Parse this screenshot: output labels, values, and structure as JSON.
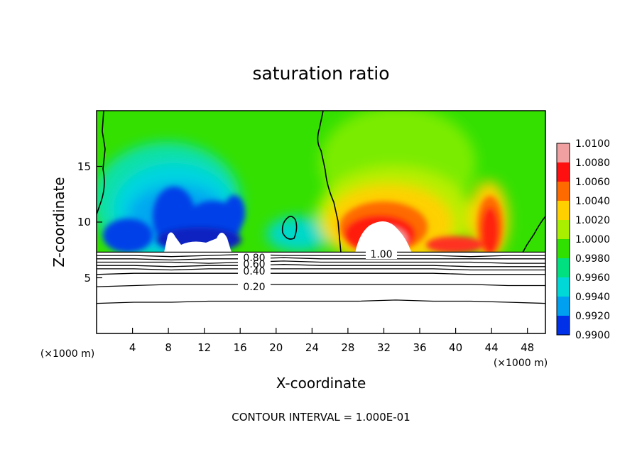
{
  "chart_data": {
    "type": "contour",
    "title": "saturation ratio",
    "xlabel": "X-coordinate",
    "ylabel": "Z-coordinate",
    "x_unit_left": "(×1000 m)",
    "x_unit_right": "(×1000 m)",
    "xlim": [
      0,
      50
    ],
    "ylim": [
      0,
      20
    ],
    "x_ticks": [
      4,
      8,
      12,
      16,
      20,
      24,
      28,
      32,
      36,
      40,
      44,
      48
    ],
    "y_ticks": [
      5,
      10,
      15
    ],
    "footer": "CONTOUR INTERVAL = 1.000E-01",
    "contour_interval": 0.1,
    "colorbar": {
      "labels": [
        "1.0100",
        "1.0080",
        "1.0060",
        "1.0040",
        "1.0020",
        "1.0000",
        "0.9980",
        "0.9960",
        "0.9940",
        "0.9920",
        "0.9900"
      ],
      "min": 0.99,
      "max": 1.01,
      "colors": [
        "#f0a0a0",
        "#ff1010",
        "#ff6a00",
        "#ffd000",
        "#a8f000",
        "#30e000",
        "#00e080",
        "#00d8d8",
        "#00a0f0",
        "#0030e8",
        "#5a1aa0"
      ]
    },
    "contour_labels": [
      {
        "text": "1.00",
        "x": 29.5,
        "z": 7.2
      },
      {
        "text": "0.80",
        "x": 17.0,
        "z": 6.8
      },
      {
        "text": "0.60",
        "x": 17.0,
        "z": 6.3
      },
      {
        "text": "0.40",
        "x": 17.0,
        "z": 5.6
      },
      {
        "text": "0.20",
        "x": 17.0,
        "z": 4.2
      }
    ],
    "subsaturated_lines_z": [
      [
        7.0,
        7.0,
        6.9,
        7.0,
        7.1,
        7.0,
        7.0,
        7.0,
        7.0,
        7.0,
        6.9,
        7.0,
        7.0
      ],
      [
        6.7,
        6.7,
        6.6,
        6.7,
        6.7,
        6.8,
        6.7,
        6.7,
        6.7,
        6.7,
        6.7,
        6.7,
        6.7
      ],
      [
        6.4,
        6.4,
        6.4,
        6.3,
        6.4,
        6.5,
        6.4,
        6.4,
        6.4,
        6.4,
        6.4,
        6.3,
        6.3
      ],
      [
        6.1,
        6.1,
        6.0,
        6.1,
        6.1,
        6.2,
        6.1,
        6.1,
        6.1,
        6.1,
        6.0,
        6.0,
        6.0
      ],
      [
        5.8,
        5.8,
        5.7,
        5.8,
        5.8,
        5.8,
        5.8,
        5.8,
        5.8,
        5.8,
        5.7,
        5.7,
        5.7
      ],
      [
        5.3,
        5.4,
        5.4,
        5.4,
        5.4,
        5.4,
        5.4,
        5.4,
        5.4,
        5.4,
        5.3,
        5.3,
        5.3
      ],
      [
        4.2,
        4.3,
        4.4,
        4.4,
        4.4,
        4.4,
        4.4,
        4.4,
        4.4,
        4.4,
        4.4,
        4.3,
        4.3
      ],
      [
        2.7,
        2.8,
        2.8,
        2.9,
        2.9,
        2.9,
        2.9,
        2.9,
        3.0,
        2.9,
        2.9,
        2.8,
        2.7
      ]
    ],
    "cloud_base_z": 7.3
  }
}
